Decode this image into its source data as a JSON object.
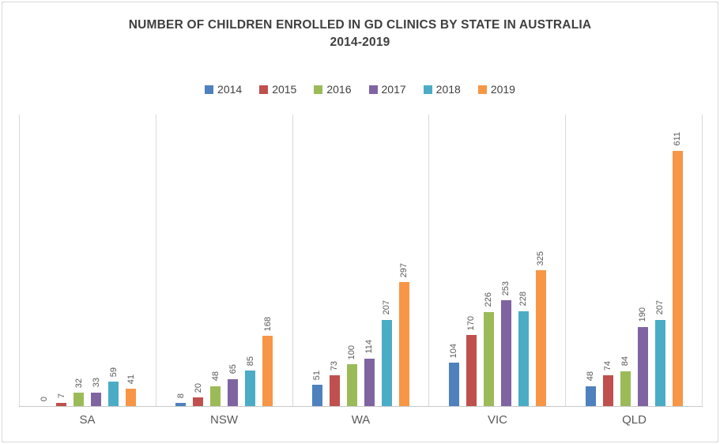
{
  "title": {
    "line1": "NUMBER OF CHILDREN ENROLLED IN GD CLINICS BY STATE IN AUSTRALIA",
    "line2": "2014-2019"
  },
  "colors": {
    "title_text": "#3f3f3f",
    "label_text": "#595959",
    "gridline": "#d9d9d9",
    "axis_line": "#c9c9c9"
  },
  "chart_data": {
    "type": "bar",
    "title": "NUMBER OF CHILDREN ENROLLED IN GD CLINICS BY STATE IN AUSTRALIA 2014-2019",
    "categories": [
      "SA",
      "NSW",
      "WA",
      "VIC",
      "QLD"
    ],
    "series": [
      {
        "name": "2014",
        "color": "#4E81BD",
        "values": [
          0,
          8,
          51,
          104,
          48
        ]
      },
      {
        "name": "2015",
        "color": "#C0504D",
        "values": [
          7,
          20,
          73,
          170,
          74
        ]
      },
      {
        "name": "2016",
        "color": "#9BBB59",
        "values": [
          32,
          48,
          100,
          226,
          84
        ]
      },
      {
        "name": "2017",
        "color": "#8064A2",
        "values": [
          33,
          65,
          114,
          253,
          190
        ]
      },
      {
        "name": "2018",
        "color": "#4BACC6",
        "values": [
          59,
          85,
          207,
          228,
          207
        ]
      },
      {
        "name": "2019",
        "color": "#F79646",
        "values": [
          41,
          168,
          297,
          325,
          611
        ]
      }
    ],
    "xlabel": "",
    "ylabel": "",
    "ylim": [
      0,
      700
    ],
    "y_axis_labels_visible": false,
    "grid": "vertical category separators only",
    "legend_position": "top",
    "data_labels": "value above each bar, rotated 90 degrees"
  }
}
